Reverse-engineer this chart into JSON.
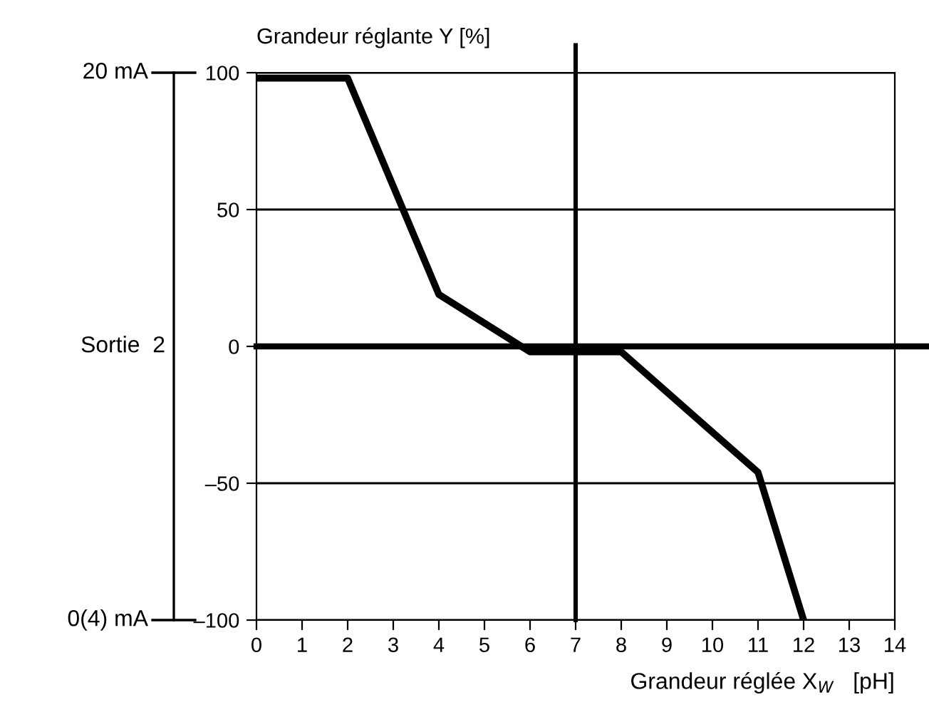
{
  "chart_data": {
    "type": "line",
    "ylabel": "Grandeur réglante Y [%]",
    "xlabel": "Grandeur réglée X$_{W}$   [pH]",
    "x": [
      0,
      2,
      4,
      6,
      8,
      11,
      12
    ],
    "series": [
      {
        "color": "#000000",
        "values": [
          98,
          98,
          19,
          -2,
          -2,
          -46,
          -100
        ]
      }
    ],
    "xlim": [
      0,
      14
    ],
    "xticks": [
      0,
      1,
      2,
      3,
      4,
      5,
      6,
      7,
      8,
      9,
      10,
      11,
      12,
      13,
      14
    ],
    "ylim": [
      -100,
      100
    ],
    "yticks": [
      {
        "value": -100,
        "label": "–100"
      },
      {
        "value": -50,
        "label": "–50"
      },
      0,
      50,
      100
    ],
    "grid": "y",
    "ref_lines": [
      {
        "axis": "x",
        "value": 7,
        "color": "#000000"
      },
      {
        "axis": "y",
        "value": 0,
        "color": "#000000"
      }
    ],
    "annotations": [
      "20 mA",
      "Sortie  2",
      "0(4) mA"
    ],
    "marker": "none",
    "line_style": "solid",
    "legend": false
  }
}
